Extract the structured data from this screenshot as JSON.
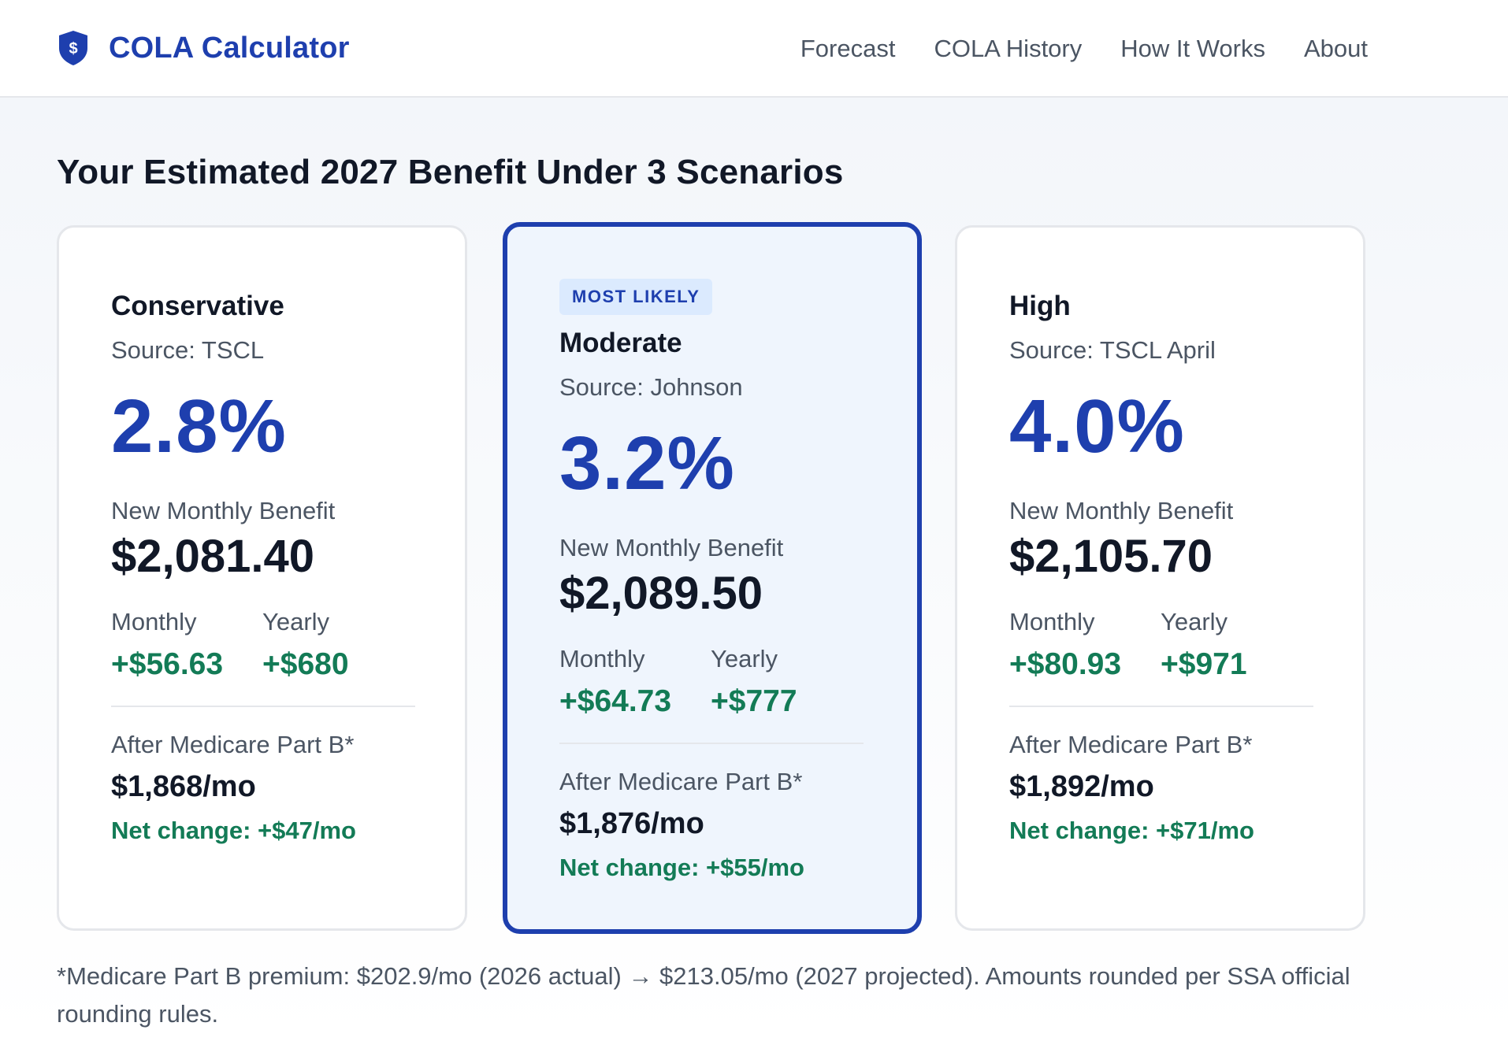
{
  "header": {
    "brand": "COLA Calculator",
    "brand_icon": "dollar-shield-icon",
    "nav": [
      "Forecast",
      "COLA History",
      "How It Works",
      "About"
    ]
  },
  "main": {
    "title": "Your Estimated 2027 Benefit Under 3 Scenarios",
    "scenarios": [
      {
        "badge": "",
        "name": "Conservative",
        "source": "Source: TSCL",
        "pct": "2.8%",
        "nmb_label": "New Monthly Benefit",
        "nmb_value": "$2,081.40",
        "monthly_label": "Monthly",
        "monthly_value": "+$56.63",
        "yearly_label": "Yearly",
        "yearly_value": "+$680",
        "medicare_label": "After Medicare Part B*",
        "medicare_value": "$1,868/mo",
        "net_change": "Net change: +$47/mo"
      },
      {
        "badge": "MOST LIKELY",
        "name": "Moderate",
        "source": "Source: Johnson",
        "pct": "3.2%",
        "nmb_label": "New Monthly Benefit",
        "nmb_value": "$2,089.50",
        "monthly_label": "Monthly",
        "monthly_value": "+$64.73",
        "yearly_label": "Yearly",
        "yearly_value": "+$777",
        "medicare_label": "After Medicare Part B*",
        "medicare_value": "$1,876/mo",
        "net_change": "Net change: +$55/mo"
      },
      {
        "badge": "",
        "name": "High",
        "source": "Source: TSCL April",
        "pct": "4.0%",
        "nmb_label": "New Monthly Benefit",
        "nmb_value": "$2,105.70",
        "monthly_label": "Monthly",
        "monthly_value": "+$80.93",
        "yearly_label": "Yearly",
        "yearly_value": "+$971",
        "medicare_label": "After Medicare Part B*",
        "medicare_value": "$1,892/mo",
        "net_change": "Net change: +$71/mo"
      }
    ],
    "footnote": "*Medicare Part B premium: $202.9/mo (2026 actual) → $213.05/mo (2027 projected). Amounts rounded per SSA official rounding rules."
  },
  "colors": {
    "brand_blue": "#1e3fae",
    "positive_green": "#137b56",
    "highlight_bg": "#eff5fd",
    "badge_bg": "#dbeafe"
  }
}
